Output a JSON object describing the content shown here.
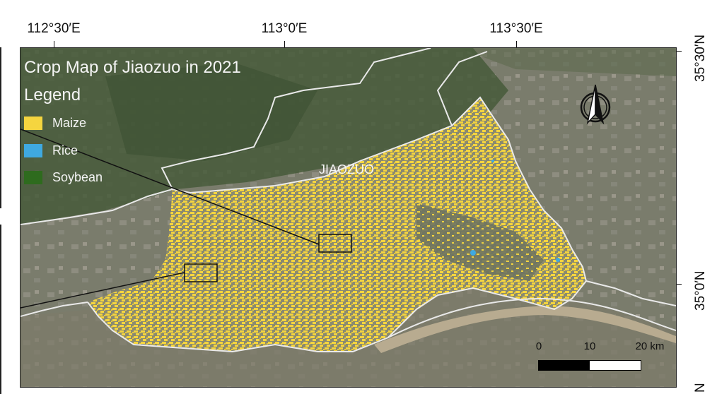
{
  "map": {
    "title": "Crop Map of Jiaozuo in 2021",
    "region_label": "JIAOZUO",
    "legend": {
      "title": "Legend",
      "items": [
        {
          "label": "Maize",
          "color": "#f5d53f"
        },
        {
          "label": "Rice",
          "color": "#3fa9e0"
        },
        {
          "label": "Soybean",
          "color": "#2e6b1e"
        }
      ]
    },
    "longitude_labels": [
      "112°30′E",
      "113°0′E",
      "113°30′E"
    ],
    "latitude_labels": [
      "35°30′N",
      "35°0′N",
      "N"
    ],
    "scale_bar": {
      "labels": [
        "0",
        "10",
        "20 km"
      ]
    },
    "north_arrow": "north-arrow-icon",
    "colors": {
      "basemap": "#6f7560",
      "boundary": "#e9e9e9",
      "maize": "#f5d53f",
      "rice": "#3fa9e0",
      "soybean": "#2e6b1e",
      "river": "#b8ab90"
    }
  }
}
